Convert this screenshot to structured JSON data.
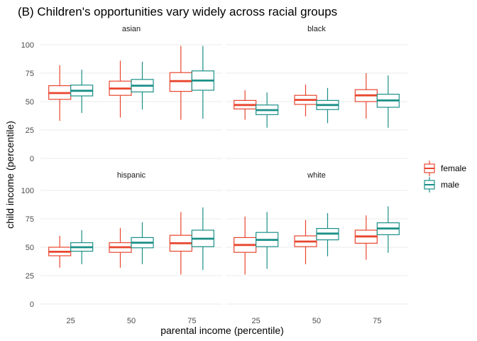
{
  "chart_data": {
    "type": "box",
    "title": "(B) Children's opportunities vary widely across racial groups",
    "xlabel": "parental income (percentile)",
    "ylabel": "child income (percentile)",
    "categories": [
      "25",
      "50",
      "75"
    ],
    "yticks": [
      0,
      25,
      50,
      75,
      100
    ],
    "ylim": [
      -3,
      102
    ],
    "grid": true,
    "legend_position": "right",
    "legend": [
      {
        "label": "female",
        "color": "#E8462F"
      },
      {
        "label": "male",
        "color": "#1B9088"
      }
    ],
    "panels": [
      {
        "name": "asian",
        "series": [
          {
            "name": "female",
            "boxes": [
              {
                "min": 33,
                "q1": 52,
                "median": 57.5,
                "q3": 64,
                "max": 82
              },
              {
                "min": 36,
                "q1": 55.5,
                "median": 61.5,
                "q3": 68,
                "max": 86
              },
              {
                "min": 34,
                "q1": 59,
                "median": 68,
                "q3": 75.5,
                "max": 99
              }
            ]
          },
          {
            "name": "male",
            "boxes": [
              {
                "min": 40,
                "q1": 55,
                "median": 59.5,
                "q3": 64.5,
                "max": 78
              },
              {
                "min": 43,
                "q1": 58.5,
                "median": 64,
                "q3": 69.5,
                "max": 85
              },
              {
                "min": 35,
                "q1": 60,
                "median": 68.5,
                "q3": 77,
                "max": 99
              }
            ]
          }
        ]
      },
      {
        "name": "black",
        "series": [
          {
            "name": "female",
            "boxes": [
              {
                "min": 34,
                "q1": 43.5,
                "median": 47,
                "q3": 51,
                "max": 60
              },
              {
                "min": 37,
                "q1": 47.5,
                "median": 51.5,
                "q3": 55.5,
                "max": 65
              },
              {
                "min": 35,
                "q1": 50,
                "median": 55.5,
                "q3": 60.5,
                "max": 75
              }
            ]
          },
          {
            "name": "male",
            "boxes": [
              {
                "min": 27,
                "q1": 38.5,
                "median": 42.5,
                "q3": 47,
                "max": 58
              },
              {
                "min": 31,
                "q1": 43,
                "median": 47,
                "q3": 51,
                "max": 62
              },
              {
                "min": 27,
                "q1": 45,
                "median": 51,
                "q3": 56.5,
                "max": 73
              }
            ]
          }
        ]
      },
      {
        "name": "hispanic",
        "series": [
          {
            "name": "female",
            "boxes": [
              {
                "min": 32,
                "q1": 42.5,
                "median": 46,
                "q3": 50,
                "max": 60
              },
              {
                "min": 32,
                "q1": 45.5,
                "median": 50,
                "q3": 54,
                "max": 67
              },
              {
                "min": 26,
                "q1": 46.5,
                "median": 53.5,
                "q3": 60.5,
                "max": 81
              }
            ]
          },
          {
            "name": "male",
            "boxes": [
              {
                "min": 35,
                "q1": 46.5,
                "median": 50,
                "q3": 54,
                "max": 65
              },
              {
                "min": 35,
                "q1": 49.5,
                "median": 54,
                "q3": 58.5,
                "max": 72
              },
              {
                "min": 30,
                "q1": 50.5,
                "median": 57.5,
                "q3": 65,
                "max": 85
              }
            ]
          }
        ]
      },
      {
        "name": "white",
        "series": [
          {
            "name": "female",
            "boxes": [
              {
                "min": 26,
                "q1": 45.5,
                "median": 52,
                "q3": 58.5,
                "max": 77
              },
              {
                "min": 35,
                "q1": 50.5,
                "median": 55,
                "q3": 60,
                "max": 74
              },
              {
                "min": 39,
                "q1": 53.5,
                "median": 59.5,
                "q3": 65,
                "max": 78
              }
            ]
          },
          {
            "name": "male",
            "boxes": [
              {
                "min": 31,
                "q1": 50.5,
                "median": 56.5,
                "q3": 63,
                "max": 81
              },
              {
                "min": 42,
                "q1": 56.5,
                "median": 62,
                "q3": 66.5,
                "max": 80
              },
              {
                "min": 45,
                "q1": 61,
                "median": 66.5,
                "q3": 71.5,
                "max": 86
              }
            ]
          }
        ]
      }
    ]
  }
}
